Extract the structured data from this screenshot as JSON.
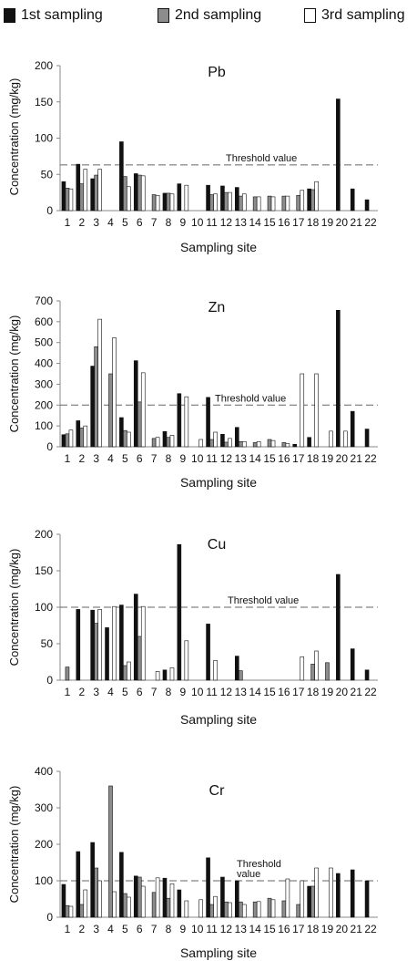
{
  "legend": [
    {
      "name": "1st sampling",
      "color": "#111111"
    },
    {
      "name": "2nd sampling",
      "color": "#8c8c8c"
    },
    {
      "name": "3rd sampling",
      "color": "#ffffff"
    }
  ],
  "chart_data": [
    {
      "type": "bar",
      "title": "Pb",
      "xlabel": "Sampling site",
      "ylabel": "Concentration (mg/kg)",
      "ylim": [
        0,
        200
      ],
      "yticks": [
        0,
        50,
        100,
        150,
        200
      ],
      "threshold": {
        "label": "Threshold value",
        "value": 63
      },
      "categories": [
        "1",
        "2",
        "3",
        "4",
        "5",
        "6",
        "7",
        "8",
        "9",
        "10",
        "11",
        "12",
        "13",
        "14",
        "15",
        "16",
        "17",
        "18",
        "19",
        "20",
        "21",
        "22"
      ],
      "series": [
        {
          "name": "1st sampling",
          "values": [
            40,
            64,
            44,
            0,
            95,
            51,
            0,
            24,
            37,
            0,
            35,
            34,
            32,
            0,
            0,
            0,
            0,
            30,
            0,
            154,
            30,
            15
          ]
        },
        {
          "name": "2nd sampling",
          "values": [
            31,
            37,
            49,
            0,
            47,
            49,
            22,
            24,
            0,
            0,
            22,
            25,
            20,
            19,
            20,
            20,
            21,
            29,
            0,
            0,
            0,
            0
          ]
        },
        {
          "name": "3rd sampling",
          "values": [
            30,
            57,
            57,
            0,
            33,
            48,
            21,
            23,
            35,
            0,
            23,
            25,
            23,
            19,
            19,
            20,
            28,
            40,
            0,
            0,
            0,
            0
          ]
        }
      ]
    },
    {
      "type": "bar",
      "title": "Zn",
      "xlabel": "Sampling site",
      "ylabel": "Concentration (mg/kg)",
      "ylim": [
        0,
        700
      ],
      "yticks": [
        0,
        100,
        200,
        300,
        400,
        500,
        600,
        700
      ],
      "threshold": {
        "label": "Threshold value",
        "value": 200
      },
      "categories": [
        "1",
        "2",
        "3",
        "4",
        "5",
        "6",
        "7",
        "8",
        "9",
        "10",
        "11",
        "12",
        "13",
        "14",
        "15",
        "16",
        "17",
        "18",
        "19",
        "20",
        "21",
        "22"
      ],
      "series": [
        {
          "name": "1st sampling",
          "values": [
            58,
            125,
            387,
            0,
            140,
            413,
            0,
            73,
            255,
            0,
            237,
            60,
            93,
            0,
            0,
            0,
            12,
            45,
            0,
            655,
            170,
            85
          ]
        },
        {
          "name": "2nd sampling",
          "values": [
            62,
            90,
            480,
            350,
            78,
            215,
            40,
            45,
            0,
            0,
            35,
            22,
            25,
            20,
            35,
            20,
            0,
            0,
            0,
            0,
            0,
            0
          ]
        },
        {
          "name": "3rd sampling",
          "values": [
            80,
            100,
            612,
            523,
            70,
            355,
            45,
            55,
            240,
            35,
            70,
            40,
            25,
            25,
            30,
            15,
            350,
            350,
            75,
            75,
            0,
            0
          ]
        }
      ]
    },
    {
      "type": "bar",
      "title": "Cu",
      "xlabel": "Sampling site",
      "ylabel": "Concentration (mg/kg)",
      "ylim": [
        0,
        200
      ],
      "yticks": [
        0,
        50,
        100,
        150,
        200
      ],
      "threshold": {
        "label": "Threshold value",
        "value": 100
      },
      "categories": [
        "1",
        "2",
        "3",
        "4",
        "5",
        "6",
        "7",
        "8",
        "9",
        "10",
        "11",
        "12",
        "13",
        "14",
        "15",
        "16",
        "17",
        "18",
        "19",
        "20",
        "21",
        "22"
      ],
      "series": [
        {
          "name": "1st sampling",
          "values": [
            0,
            97,
            96,
            72,
            103,
            118,
            0,
            14,
            186,
            0,
            77,
            0,
            33,
            0,
            0,
            0,
            0,
            0,
            0,
            145,
            43,
            14
          ]
        },
        {
          "name": "2nd sampling",
          "values": [
            18,
            0,
            78,
            0,
            20,
            60,
            0,
            0,
            0,
            0,
            0,
            0,
            13,
            0,
            0,
            0,
            0,
            22,
            24,
            0,
            0,
            0
          ]
        },
        {
          "name": "3rd sampling",
          "values": [
            0,
            0,
            97,
            101,
            25,
            101,
            12,
            17,
            54,
            0,
            27,
            0,
            0,
            0,
            0,
            0,
            32,
            40,
            0,
            0,
            0,
            0
          ]
        }
      ]
    },
    {
      "type": "bar",
      "title": "Cr",
      "xlabel": "Sampling site",
      "ylabel": "Concentration (mg/kg)",
      "ylim": [
        0,
        400
      ],
      "yticks": [
        0,
        100,
        200,
        300,
        400
      ],
      "threshold": {
        "label": "Threshold\nvalue",
        "value": 100
      },
      "categories": [
        "1",
        "2",
        "3",
        "4",
        "5",
        "6",
        "7",
        "8",
        "9",
        "10",
        "11",
        "12",
        "13",
        "14",
        "15",
        "16",
        "17",
        "18",
        "19",
        "20",
        "21",
        "22"
      ],
      "series": [
        {
          "name": "1st sampling",
          "values": [
            90,
            180,
            205,
            0,
            178,
            113,
            0,
            107,
            75,
            0,
            163,
            110,
            100,
            0,
            0,
            0,
            0,
            85,
            0,
            120,
            130,
            100
          ]
        },
        {
          "name": "2nd sampling",
          "values": [
            32,
            35,
            135,
            360,
            65,
            110,
            68,
            52,
            0,
            0,
            35,
            42,
            42,
            42,
            52,
            45,
            35,
            85,
            0,
            0,
            0,
            0
          ]
        },
        {
          "name": "3rd sampling",
          "values": [
            30,
            75,
            100,
            70,
            55,
            85,
            108,
            92,
            45,
            48,
            57,
            40,
            35,
            43,
            48,
            105,
            100,
            135,
            135,
            0,
            0,
            0
          ]
        }
      ]
    }
  ]
}
